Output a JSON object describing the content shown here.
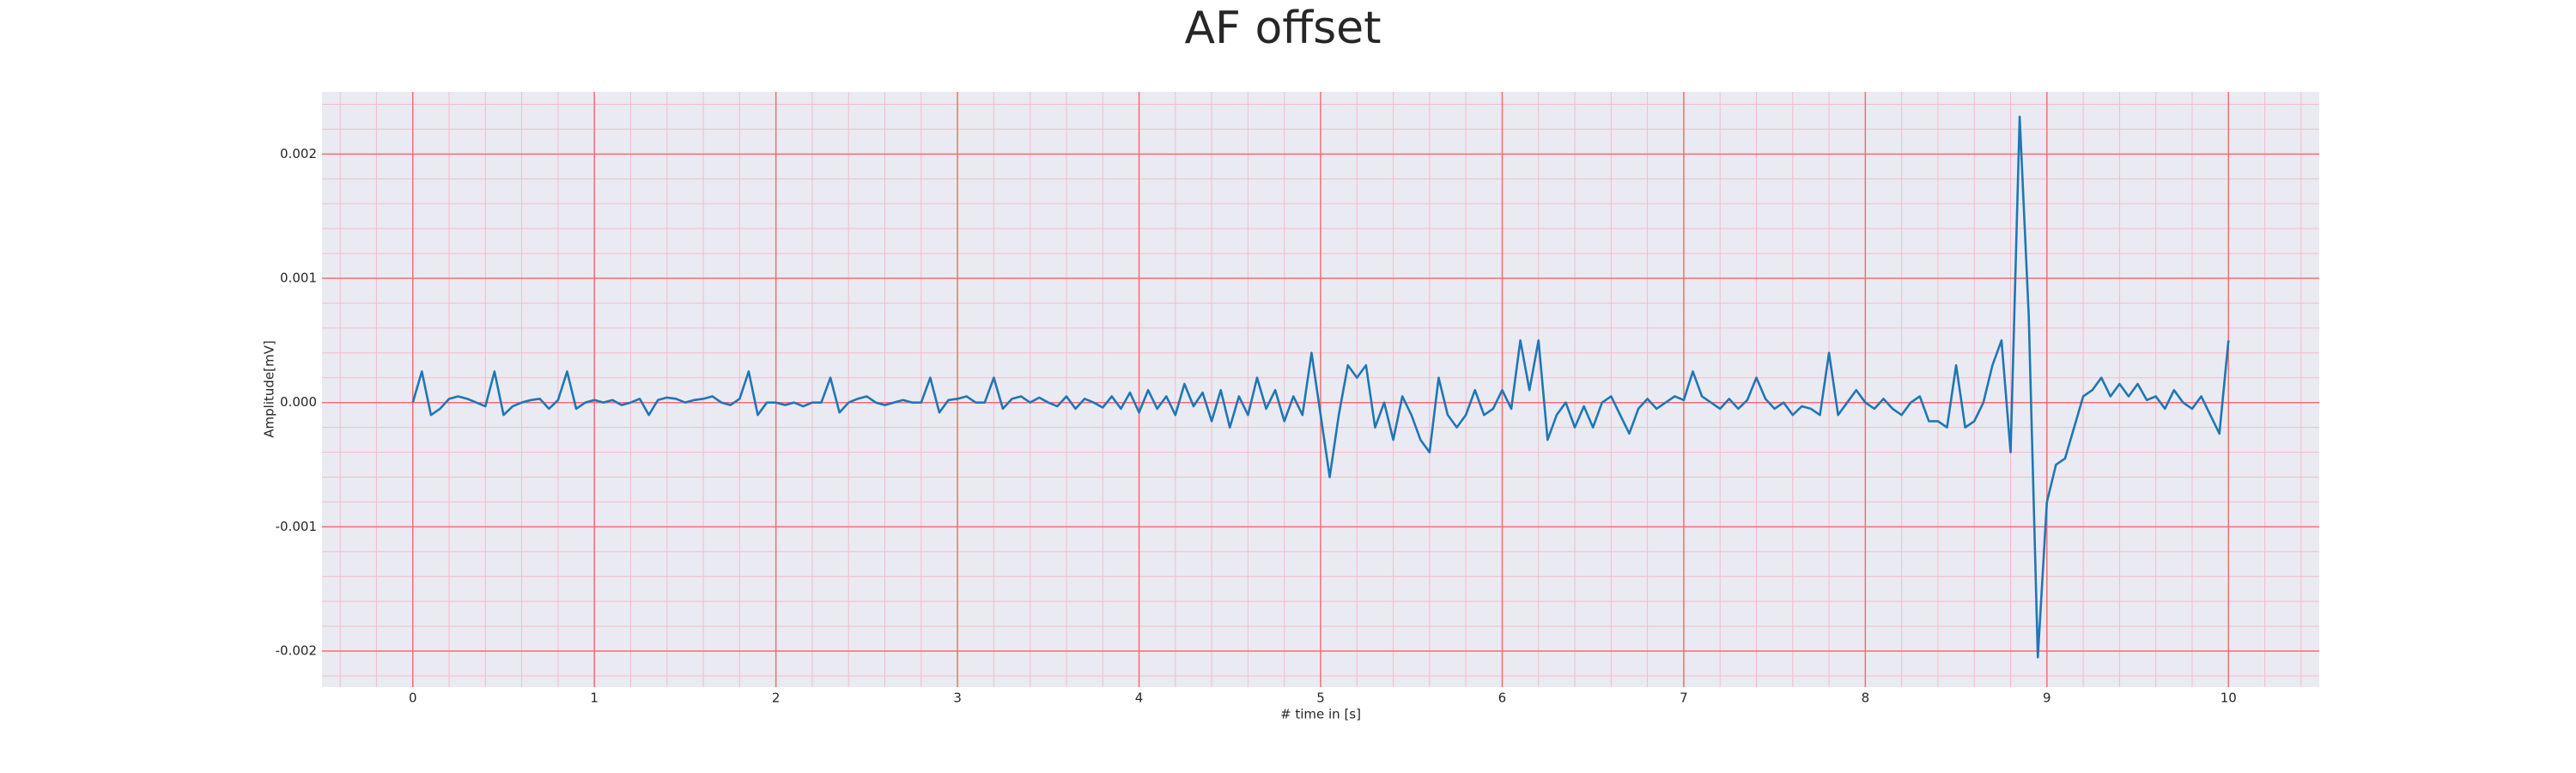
{
  "chart_data": {
    "type": "line",
    "title": "AF offset",
    "xlabel": "# time in [s]",
    "ylabel": "Amplitude[mV]",
    "xlim": [
      -0.5,
      10.5
    ],
    "ylim": [
      -0.00229,
      0.0025
    ],
    "xticks": [
      0,
      1,
      2,
      3,
      4,
      5,
      6,
      7,
      8,
      9,
      10
    ],
    "yticks": [
      -0.002,
      -0.001,
      {
        "value": 0,
        "label": "0.000"
      },
      0.001,
      0.002
    ],
    "grid": true,
    "minor_grid": true,
    "background": "#eaeaf2",
    "grid_color": "#f07070",
    "minor_grid_color": "#f4bcc8",
    "series": [
      {
        "name": "AF offset",
        "color": "#1f77b4",
        "x": [
          0,
          0.05,
          0.1,
          0.15,
          0.2,
          0.25,
          0.3,
          0.35,
          0.4,
          0.45,
          0.5,
          0.55,
          0.6,
          0.65,
          0.7,
          0.75,
          0.8,
          0.85,
          0.9,
          0.95,
          1,
          1.05,
          1.1,
          1.15,
          1.2,
          1.25,
          1.3,
          1.35,
          1.4,
          1.45,
          1.5,
          1.55,
          1.6,
          1.65,
          1.7,
          1.75,
          1.8,
          1.85,
          1.9,
          1.95,
          2,
          2.05,
          2.1,
          2.15,
          2.2,
          2.25,
          2.3,
          2.35,
          2.4,
          2.45,
          2.5,
          2.55,
          2.6,
          2.65,
          2.7,
          2.75,
          2.8,
          2.85,
          2.9,
          2.95,
          3,
          3.05,
          3.1,
          3.15,
          3.2,
          3.25,
          3.3,
          3.35,
          3.4,
          3.45,
          3.5,
          3.55,
          3.6,
          3.65,
          3.7,
          3.75,
          3.8,
          3.85,
          3.9,
          3.95,
          4,
          4.05,
          4.1,
          4.15,
          4.2,
          4.25,
          4.3,
          4.35,
          4.4,
          4.45,
          4.5,
          4.55,
          4.6,
          4.65,
          4.7,
          4.75,
          4.8,
          4.85,
          4.9,
          4.95,
          5,
          5.05,
          5.1,
          5.15,
          5.2,
          5.25,
          5.3,
          5.35,
          5.4,
          5.45,
          5.5,
          5.55,
          5.6,
          5.65,
          5.7,
          5.75,
          5.8,
          5.85,
          5.9,
          5.95,
          6,
          6.05,
          6.1,
          6.15,
          6.2,
          6.25,
          6.3,
          6.35,
          6.4,
          6.45,
          6.5,
          6.55,
          6.6,
          6.65,
          6.7,
          6.75,
          6.8,
          6.85,
          6.9,
          6.95,
          7,
          7.05,
          7.1,
          7.15,
          7.2,
          7.25,
          7.3,
          7.35,
          7.4,
          7.45,
          7.5,
          7.55,
          7.6,
          7.65,
          7.7,
          7.75,
          7.8,
          7.85,
          7.9,
          7.95,
          8,
          8.05,
          8.1,
          8.15,
          8.2,
          8.25,
          8.3,
          8.35,
          8.4,
          8.45,
          8.5,
          8.55,
          8.6,
          8.65,
          8.7,
          8.75,
          8.8,
          8.85,
          8.9,
          8.95,
          9,
          9.05,
          9.1,
          9.15,
          9.2,
          9.25,
          9.3,
          9.35,
          9.4,
          9.45,
          9.5,
          9.55,
          9.6,
          9.65,
          9.7,
          9.75,
          9.8,
          9.85,
          9.9,
          9.95,
          10
        ],
        "values": [
          0,
          0.00025,
          -0.0001,
          -5e-05,
          3e-05,
          5e-05,
          3e-05,
          0,
          -3e-05,
          0.00025,
          -0.0001,
          -3e-05,
          0,
          2e-05,
          3e-05,
          -5e-05,
          2e-05,
          0.00025,
          -5e-05,
          0,
          2e-05,
          0,
          2e-05,
          -2e-05,
          0,
          3e-05,
          -0.0001,
          2e-05,
          4e-05,
          3e-05,
          0,
          2e-05,
          3e-05,
          5e-05,
          0,
          -2e-05,
          3e-05,
          0.00025,
          -0.0001,
          0,
          0,
          -2e-05,
          0,
          -3e-05,
          0,
          0,
          0.0002,
          -8e-05,
          0,
          3e-05,
          5e-05,
          0,
          -2e-05,
          0,
          2e-05,
          0,
          0,
          0.0002,
          -8e-05,
          2e-05,
          3e-05,
          5e-05,
          0,
          0,
          0.0002,
          -5e-05,
          3e-05,
          5e-05,
          0,
          4e-05,
          0,
          -3e-05,
          5e-05,
          -5e-05,
          3e-05,
          0,
          -4e-05,
          5e-05,
          -5e-05,
          8e-05,
          -8e-05,
          0.0001,
          -5e-05,
          5e-05,
          -0.0001,
          0.00015,
          -3e-05,
          8e-05,
          -0.00015,
          0.0001,
          -0.0002,
          5e-05,
          -0.0001,
          0.0002,
          -5e-05,
          0.0001,
          -0.00015,
          5e-05,
          -0.0001,
          0.0004,
          -0.0001,
          -0.0006,
          -0.0001,
          0.0003,
          0.0002,
          0.0003,
          -0.0002,
          0,
          -0.0003,
          5e-05,
          -0.0001,
          -0.0003,
          -0.0004,
          0.0002,
          -0.0001,
          -0.0002,
          -0.0001,
          0.0001,
          -0.0001,
          -5e-05,
          0.0001,
          -5e-05,
          0.0005,
          0.0001,
          0.0005,
          -0.0003,
          -0.0001,
          0,
          -0.0002,
          -3e-05,
          -0.0002,
          0,
          5e-05,
          -0.0001,
          -0.00025,
          -5e-05,
          3e-05,
          -5e-05,
          0,
          5e-05,
          2e-05,
          0.00025,
          5e-05,
          0,
          -5e-05,
          3e-05,
          -5e-05,
          2e-05,
          0.0002,
          3e-05,
          -5e-05,
          0,
          -0.0001,
          -3e-05,
          -5e-05,
          -0.0001,
          0.0004,
          -0.0001,
          0,
          0.0001,
          0,
          -5e-05,
          3e-05,
          -5e-05,
          -0.0001,
          0,
          5e-05,
          -0.00015,
          -0.00015,
          -0.0002,
          0.0003,
          -0.0002,
          -0.00015,
          0,
          0.0003,
          0.0005,
          -0.0004,
          0.0023,
          0.0007,
          -0.00205,
          -0.0008,
          -0.0005,
          -0.00045,
          -0.0002,
          5e-05,
          0.0001,
          0.0002,
          5e-05,
          0.00015,
          5e-05,
          0.00015,
          2e-05,
          5e-05,
          -5e-05,
          0.0001,
          0,
          -5e-05,
          5e-05,
          -0.0001,
          -0.00025,
          0.0005
        ]
      }
    ]
  }
}
